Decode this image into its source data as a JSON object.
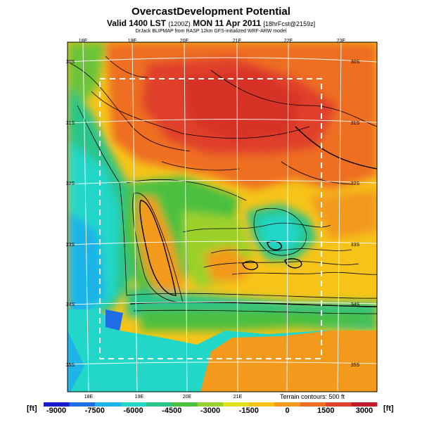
{
  "header": {
    "title": "OvercastDevelopment Potential",
    "subtitle_main": "Valid 1400 LST ",
    "subtitle_small1": "(1200Z)",
    "subtitle_mid": " MON 11 Apr 2011 ",
    "subtitle_small2": "[18hrFcst@2159z]",
    "credit": "DrJack BLIPMAP from RASP 12km GFS-initialized WRF-ARW model"
  },
  "map": {
    "lon_labels_top": [
      "18E",
      "19E",
      "20E",
      "21E",
      "22E",
      "23E"
    ],
    "lon_labels_bottom": [
      "18E",
      "19E",
      "20E",
      "21E"
    ],
    "lat_labels_left": [
      "30S",
      "31S",
      "32S",
      "33S",
      "34S",
      "35S"
    ],
    "lat_labels_right": [
      "30S",
      "31S",
      "32S",
      "33S",
      "34S",
      "35S"
    ],
    "terrain_note": "Terrain contours: 500 ft"
  },
  "colorbar": {
    "unit_left": "[ft]",
    "unit_right": "[ft]",
    "tick_labels": [
      "-9000",
      "-7500",
      "-6000",
      "-4500",
      "-3000",
      "-1500",
      "0",
      "1500",
      "3000"
    ],
    "values": [
      -9000,
      -7500,
      -6000,
      -4500,
      -3000,
      -1500,
      0,
      1500,
      3000
    ],
    "colors": [
      "#1a1ad0",
      "#1f6ee6",
      "#1fb4e8",
      "#22d7c8",
      "#2bc488",
      "#4cc040",
      "#9bd12c",
      "#e2e21c",
      "#f6c418",
      "#f39a1c",
      "#ee6e22",
      "#e0402c",
      "#c41c2c"
    ]
  }
}
